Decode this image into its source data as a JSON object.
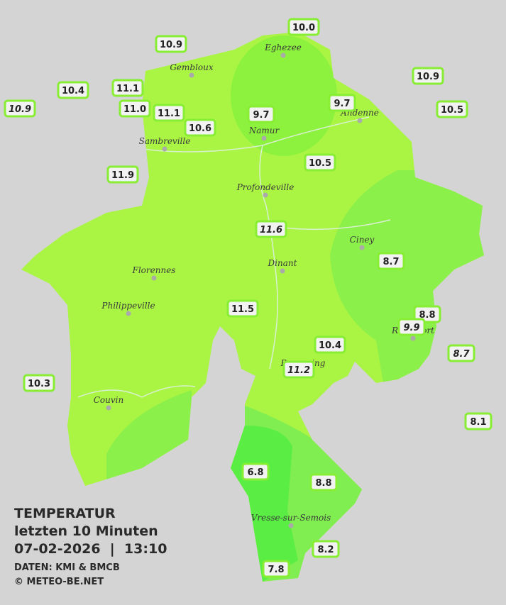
{
  "legend": {
    "title": "TEMPERATUR",
    "period": "letzten 10 Minuten",
    "datetime": "07-02-2026  |  13:10",
    "source": "DATEN: KMI & BMCB",
    "copyright": "© METEO-BE.NET"
  },
  "cities": [
    "Eghezee",
    "Gembloux",
    "Andenne",
    "Namur",
    "Sambreville",
    "Profondeville",
    "Ciney",
    "Florennes",
    "Dinant",
    "Philippeville",
    "Rochefort",
    "Beauraing",
    "Couvin",
    "Vresse-sur-Semois"
  ],
  "stations": [
    {
      "label": "10.0"
    },
    {
      "label": "10.9"
    },
    {
      "label": "10.9"
    },
    {
      "label": "10.4"
    },
    {
      "label": "11.1"
    },
    {
      "label": "10.9",
      "italic": true
    },
    {
      "label": "11.0"
    },
    {
      "label": "11.1"
    },
    {
      "label": "10.6"
    },
    {
      "label": "9.7"
    },
    {
      "label": "9.7"
    },
    {
      "label": "10.5"
    },
    {
      "label": "10.5"
    },
    {
      "label": "11.9"
    },
    {
      "label": "11.6",
      "italic": true
    },
    {
      "label": "8.7"
    },
    {
      "label": "11.5"
    },
    {
      "label": "8.8"
    },
    {
      "label": "9.9",
      "italic": true
    },
    {
      "label": "10.4"
    },
    {
      "label": "8.7",
      "italic": true
    },
    {
      "label": "11.2",
      "italic": true
    },
    {
      "label": "10.3"
    },
    {
      "label": "8.1"
    },
    {
      "label": "6.8"
    },
    {
      "label": "8.8"
    },
    {
      "label": "8.2"
    },
    {
      "label": "7.8"
    }
  ]
}
